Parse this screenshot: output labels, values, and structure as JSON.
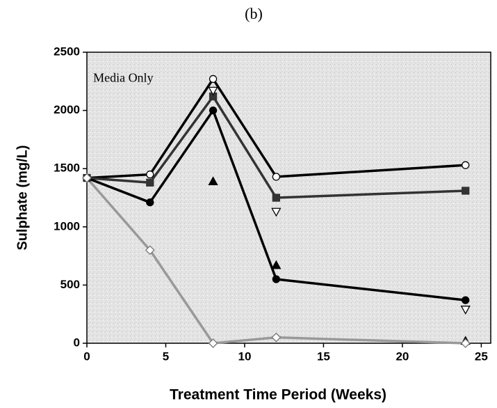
{
  "chart_data": {
    "type": "line",
    "title": "(b)",
    "xlabel": "Treatment Time Period (Weeks)",
    "ylabel": "Sulphate (mg/L)",
    "annotation": "Media Only",
    "x": [
      0,
      4,
      8,
      12,
      24
    ],
    "series": [
      {
        "color": "#000000",
        "marker": "circle-open",
        "line": true,
        "values": [
          1420,
          1450,
          2270,
          1430,
          1530
        ]
      },
      {
        "color": "#333333",
        "marker": "square",
        "line": true,
        "values": [
          1420,
          1380,
          2120,
          1250,
          1310
        ]
      },
      {
        "color": "#000000",
        "marker": "circle",
        "line": true,
        "values": [
          1420,
          1210,
          2000,
          550,
          370
        ]
      },
      {
        "color": "#000000",
        "marker": "triangle",
        "line": false,
        "values": [
          null,
          null,
          1390,
          670,
          20
        ]
      },
      {
        "color": "#000000",
        "marker": "triangle-down-open",
        "line": false,
        "values": [
          null,
          null,
          2170,
          1130,
          290
        ]
      },
      {
        "color": "#999999",
        "marker": "diamond-open",
        "line": true,
        "values": [
          1420,
          800,
          0,
          50,
          0
        ]
      }
    ],
    "xlim": [
      0,
      25.6
    ],
    "ylim": [
      0,
      2500
    ],
    "xticks": [
      0,
      5,
      10,
      15,
      20,
      25
    ],
    "yticks": [
      0,
      500,
      1000,
      1500,
      2000,
      2500
    ]
  }
}
